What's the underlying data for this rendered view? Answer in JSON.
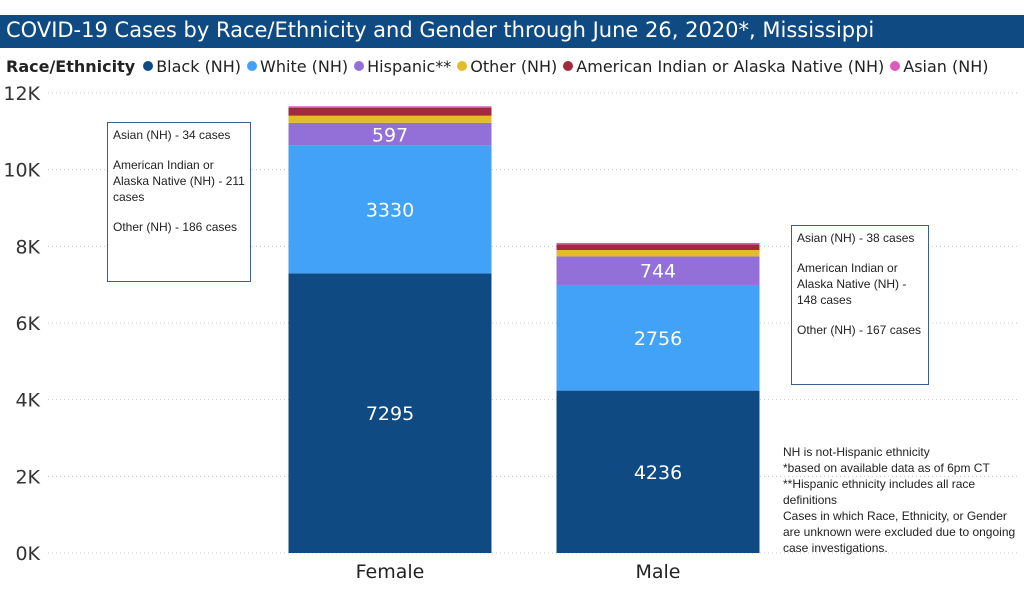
{
  "title": "COVID-19 Cases by Race/Ethnicity and Gender through June 26, 2020*, Mississippi",
  "legend": {
    "title": "Race/Ethnicity",
    "items": [
      {
        "label": "Black (NH)",
        "color": "#0f4a82"
      },
      {
        "label": "White (NH)",
        "color": "#41a2f7"
      },
      {
        "label": "Hispanic**",
        "color": "#9370d8"
      },
      {
        "label": "Other (NH)",
        "color": "#e0bd29"
      },
      {
        "label": "American Indian or Alaska Native (NH)",
        "color": "#a12a3c"
      },
      {
        "label": "Asian (NH)",
        "color": "#de59c2"
      }
    ]
  },
  "notes": {
    "female": [
      "Asian (NH) - 34 cases",
      "American Indian or Alaska Native (NH) - 211 cases",
      "Other (NH) - 186 cases"
    ],
    "male": [
      "Asian (NH) - 38 cases",
      "American Indian or Alaska Native (NH) - 148 cases",
      "Other (NH) - 167 cases"
    ]
  },
  "footnotes": [
    "NH is not-Hispanic ethnicity",
    "*based on available data as of 6pm CT",
    "**Hispanic ethnicity includes all race definitions",
    "Cases in which Race, Ethnicity, or Gender are unknown were excluded due to ongoing case investigations."
  ],
  "chart_data": {
    "type": "bar",
    "stacked": true,
    "title": "COVID-19 Cases by Race/Ethnicity and Gender through June 26, 2020*, Mississippi",
    "categories": [
      "Female",
      "Male"
    ],
    "series": [
      {
        "name": "Black (NH)",
        "color": "#0f4a82",
        "values": [
          7295,
          4236
        ],
        "labels": [
          "7295",
          "4236"
        ]
      },
      {
        "name": "White (NH)",
        "color": "#41a2f7",
        "values": [
          3330,
          2756
        ],
        "labels": [
          "3330",
          "2756"
        ]
      },
      {
        "name": "Hispanic**",
        "color": "#9370d8",
        "values": [
          597,
          744
        ],
        "labels": [
          "597",
          "744"
        ]
      },
      {
        "name": "Other (NH)",
        "color": "#e0bd29",
        "values": [
          186,
          167
        ]
      },
      {
        "name": "American Indian or Alaska Native (NH)",
        "color": "#a12a3c",
        "values": [
          211,
          148
        ]
      },
      {
        "name": "Asian (NH)",
        "color": "#de59c2",
        "values": [
          34,
          38
        ]
      }
    ],
    "yticks": [
      "0K",
      "2K",
      "4K",
      "6K",
      "8K",
      "10K",
      "12K"
    ],
    "ylim": [
      0,
      12000
    ],
    "grid": true,
    "legend_position": "top"
  }
}
